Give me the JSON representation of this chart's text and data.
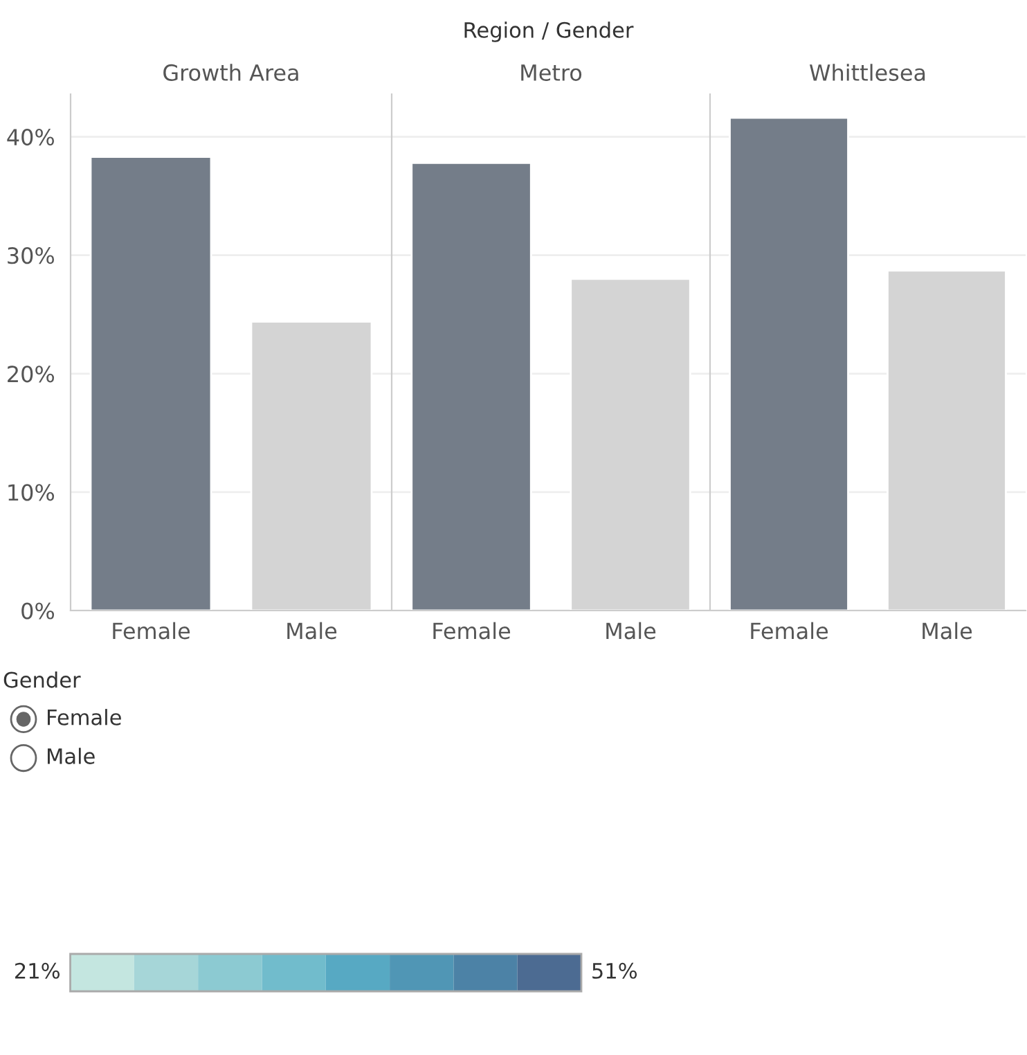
{
  "chart_data": [
    {
      "type": "bar",
      "title": "Growth Area",
      "annotations": [
        "Region / Gender"
      ],
      "categories": [
        "Female",
        "Male"
      ],
      "values": [
        38.3,
        24.4
      ],
      "colors": [
        "#747d89",
        "#d4d4d4"
      ],
      "ylim": [
        0,
        43.6
      ],
      "yticks": [
        {
          "value": 0,
          "label": "0%"
        },
        {
          "value": 10,
          "label": "10%"
        },
        {
          "value": 20,
          "label": "20%"
        },
        {
          "value": 30,
          "label": "30%"
        },
        {
          "value": 40,
          "label": "40%"
        }
      ],
      "grid": "y"
    },
    {
      "type": "bar",
      "title": "Metro",
      "categories": [
        "Female",
        "Male"
      ],
      "values": [
        37.8,
        28.0
      ],
      "colors": [
        "#747d89",
        "#d4d4d4"
      ],
      "ylim": [
        0,
        43.6
      ],
      "grid": "y",
      "tick_labels": "x"
    },
    {
      "type": "bar",
      "title": "Whittlesea",
      "categories": [
        "Female",
        "Male"
      ],
      "values": [
        41.6,
        28.7
      ],
      "colors": [
        "#747d89",
        "#d4d4d4"
      ],
      "ylim": [
        0,
        43.6
      ],
      "grid": "y",
      "tick_labels": "x"
    },
    {
      "type": "other",
      "title": "Gender",
      "annotations": [
        "Female",
        "Male"
      ]
    },
    {
      "type": "other",
      "annotations": [
        "21%",
        "51%"
      ],
      "colors": [
        "#c4e6e0",
        "#a6d6d8",
        "#8ccad2",
        "#71bccc",
        "#57a9c3",
        "#5096b5",
        "#4c82a6",
        "#4c6b92"
      ]
    }
  ]
}
